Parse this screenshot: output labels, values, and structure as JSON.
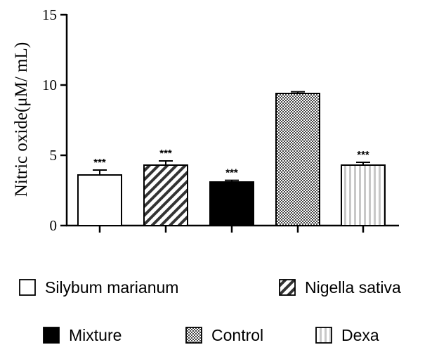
{
  "chart_data": {
    "type": "bar",
    "title": "",
    "xlabel": "",
    "ylabel": "Nitric oxide(μM/ mL)",
    "ylim": [
      0,
      15
    ],
    "yticks": [
      "0",
      "5",
      "10",
      "15"
    ],
    "categories": [
      "Silybum marianum",
      "Nigella sativa",
      "Mixture",
      "Control",
      "Dexa"
    ],
    "values": [
      3.6,
      4.3,
      3.1,
      9.4,
      4.3
    ],
    "errors": [
      0.35,
      0.3,
      0.12,
      0.12,
      0.2
    ],
    "significance": [
      "***",
      "***",
      "***",
      "",
      "***"
    ],
    "patterns": [
      "white",
      "diagonal",
      "black",
      "checker",
      "vertical-stripes"
    ],
    "grid": false,
    "legend_position": "bottom"
  }
}
